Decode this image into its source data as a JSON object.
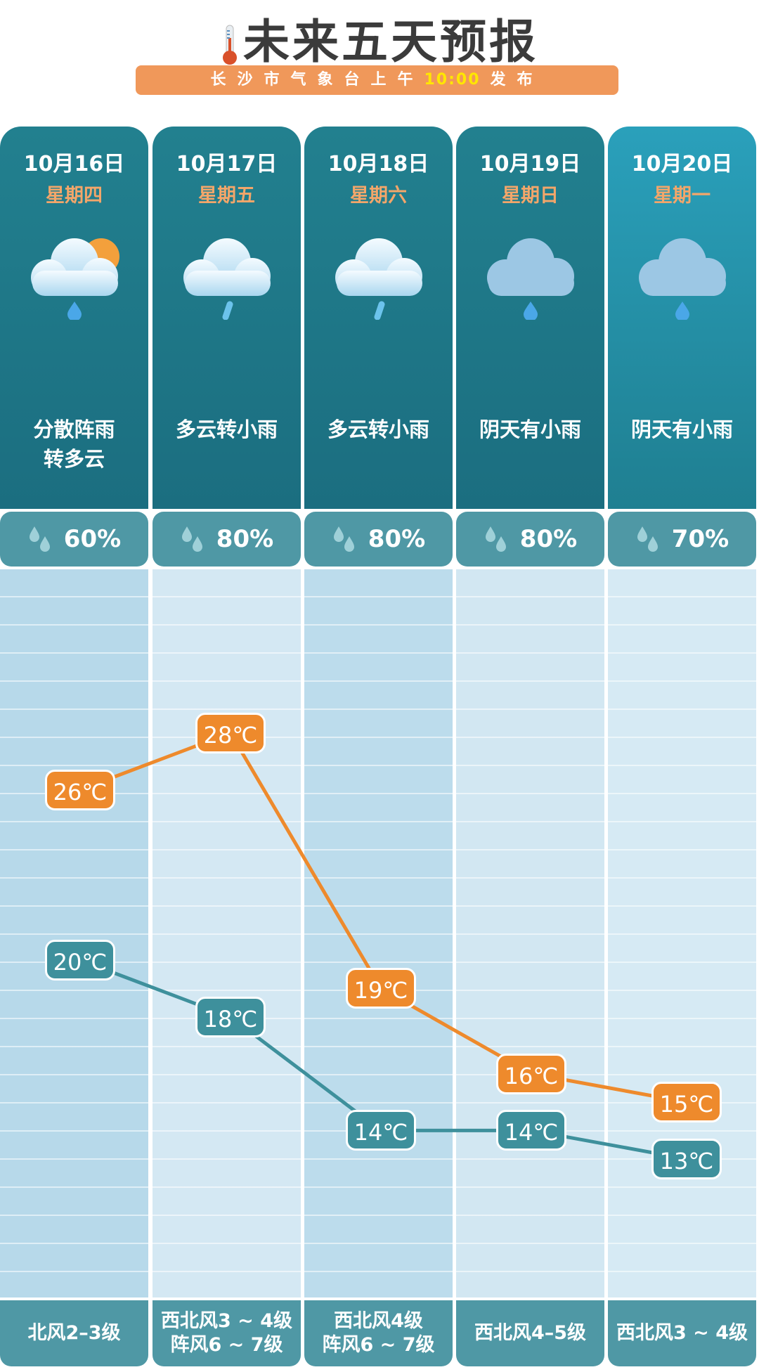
{
  "header": {
    "title": "未来五天预报",
    "subtitle_prefix": "长沙市气象台上午",
    "subtitle_time": "10:00",
    "subtitle_suffix": "发布"
  },
  "colors": {
    "high": "#ee8a2c",
    "low": "#3e909c",
    "card": "#1f7a8a",
    "accent_time": "#ffe600"
  },
  "days": [
    {
      "date": "10月16日",
      "weekday": "星期四",
      "icon": "cloud-sun-rain-icon",
      "desc": "分散阵雨\n转多云",
      "precip": "60%",
      "wind": "北风2–3级"
    },
    {
      "date": "10月17日",
      "weekday": "星期五",
      "icon": "cloud-rain-icon",
      "desc": "多云转小雨",
      "precip": "80%",
      "wind": "西北风3 ~ 4级\n阵风6 ~ 7级"
    },
    {
      "date": "10月18日",
      "weekday": "星期六",
      "icon": "cloud-rain-icon",
      "desc": "多云转小雨",
      "precip": "80%",
      "wind": "西北风4级\n阵风6 ~ 7级"
    },
    {
      "date": "10月19日",
      "weekday": "星期日",
      "icon": "cloud-drop-icon",
      "desc": "阴天有小雨",
      "precip": "80%",
      "wind": "西北风4–5级"
    },
    {
      "date": "10月20日",
      "weekday": "星期一",
      "icon": "cloud-drop-icon",
      "desc": "阴天有小雨",
      "precip": "70%",
      "wind": "西北风3 ~ 4级"
    }
  ],
  "chart_data": {
    "type": "line",
    "categories": [
      "10月16日",
      "10月17日",
      "10月18日",
      "10月19日",
      "10月20日"
    ],
    "unit": "℃",
    "series": [
      {
        "key": "high",
        "values": [
          26,
          28,
          19,
          16,
          15
        ]
      },
      {
        "key": "low",
        "values": [
          20,
          18,
          14,
          14,
          13
        ]
      }
    ]
  }
}
